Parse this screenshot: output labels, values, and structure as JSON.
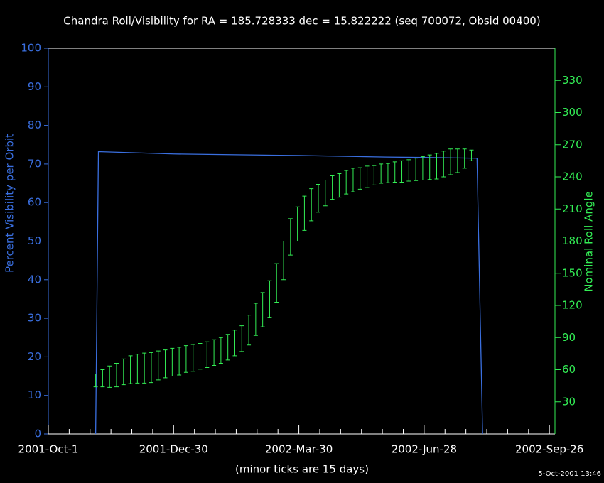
{
  "chart_data": {
    "type": "line",
    "title": "Chandra Roll/Visibility for RA = 185.728333 dec = 15.822222 (seq 700072, Obsid 00400)",
    "x_label": "(minor ticks are 15 days)",
    "y_label": "Percent Visibility per Orbit",
    "y2_label": "Nominal Roll Angle",
    "annotation": "5-Oct-2001 13:46",
    "xlim": [
      "2001-10-01",
      "2002-09-30"
    ],
    "xticks": [
      {
        "value": "2001-10-01",
        "label": "2001-Oct-1"
      },
      {
        "value": "2001-12-30",
        "label": "2001-Dec-30"
      },
      {
        "value": "2002-03-30",
        "label": "2002-Mar-30"
      },
      {
        "value": "2002-06-28",
        "label": "2002-Jun-28"
      },
      {
        "value": "2002-09-26",
        "label": "2002-Sep-26"
      }
    ],
    "xminorticks": [
      "2001-10-16",
      "2001-10-31",
      "2001-11-15",
      "2001-11-30",
      "2001-12-15",
      "2002-01-14",
      "2002-01-29",
      "2002-02-13",
      "2002-02-28",
      "2002-03-15",
      "2002-04-14",
      "2002-04-29",
      "2002-05-14",
      "2002-05-29",
      "2002-06-13",
      "2002-07-13",
      "2002-07-28",
      "2002-08-12",
      "2002-08-27",
      "2002-09-11"
    ],
    "ylim": [
      0,
      100
    ],
    "yticks": [
      0,
      10,
      20,
      30,
      40,
      50,
      60,
      70,
      80,
      90,
      100
    ],
    "y2lim": [
      0,
      360
    ],
    "y2ticks": [
      30,
      60,
      90,
      120,
      150,
      180,
      210,
      240,
      270,
      300,
      330
    ],
    "y_color": "#3a6fe0",
    "y2_color": "#33ee55",
    "series": [
      {
        "type": "line",
        "color": "#3a6fe0",
        "x": [
          "2001-11-04",
          "2001-11-06",
          "2001-12-30",
          "2002-03-30",
          "2002-06-01",
          "2002-06-28",
          "2002-08-05",
          "2002-08-09"
        ],
        "values": [
          0,
          73.2,
          72.6,
          72.2,
          71.8,
          71.7,
          71.5,
          0
        ]
      },
      {
        "type": "errorbar",
        "axis": "y2",
        "color": "#33ee55",
        "x": [
          "2001-11-04",
          "2001-11-09",
          "2001-11-14",
          "2001-11-19",
          "2001-11-24",
          "2001-11-29",
          "2001-12-04",
          "2001-12-09",
          "2001-12-14",
          "2001-12-19",
          "2001-12-24",
          "2001-12-29",
          "2002-01-03",
          "2002-01-08",
          "2002-01-13",
          "2002-01-18",
          "2002-01-23",
          "2002-01-28",
          "2002-02-02",
          "2002-02-07",
          "2002-02-12",
          "2002-02-17",
          "2002-02-22",
          "2002-02-27",
          "2002-03-04",
          "2002-03-09",
          "2002-03-14",
          "2002-03-19",
          "2002-03-24",
          "2002-03-29",
          "2002-04-03",
          "2002-04-08",
          "2002-04-13",
          "2002-04-18",
          "2002-04-23",
          "2002-04-28",
          "2002-05-03",
          "2002-05-08",
          "2002-05-13",
          "2002-05-18",
          "2002-05-23",
          "2002-05-28",
          "2002-06-02",
          "2002-06-07",
          "2002-06-12",
          "2002-06-17",
          "2002-06-22",
          "2002-06-27",
          "2002-07-02",
          "2002-07-07",
          "2002-07-12",
          "2002-07-17",
          "2002-07-22",
          "2002-07-27",
          "2002-08-01"
        ],
        "values": [
          50,
          52,
          53.5,
          55,
          58,
          60,
          61,
          61.5,
          62,
          64,
          65.5,
          67,
          68,
          70,
          71,
          72.5,
          74,
          76,
          78,
          81,
          85,
          89,
          97,
          107,
          116,
          126,
          141,
          162,
          184,
          196,
          206,
          214,
          220,
          225,
          230,
          232,
          235,
          237,
          238.5,
          240,
          241.5,
          243,
          243.5,
          244.5,
          245,
          246,
          247,
          248,
          249,
          250,
          252,
          254,
          255,
          257,
          260
        ],
        "errors": [
          6,
          8,
          10,
          11,
          12,
          13,
          13.5,
          14,
          14,
          13.5,
          13,
          13,
          13,
          12.5,
          12.5,
          12,
          12,
          12,
          12,
          12,
          12,
          12,
          14,
          15,
          16,
          17,
          18,
          18,
          17,
          16,
          16,
          15,
          13,
          12,
          11,
          11,
          11,
          11,
          10,
          10,
          9,
          9,
          9,
          9.5,
          10,
          10,
          10.5,
          11,
          11.5,
          12,
          12,
          12,
          11,
          9,
          5
        ]
      }
    ]
  }
}
